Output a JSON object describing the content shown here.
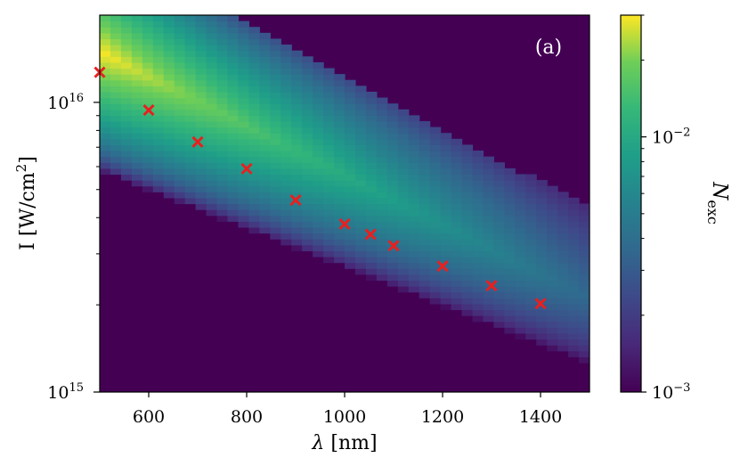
{
  "chart_data": {
    "type": "heatmap",
    "panel_label": "(a)",
    "xlabel_symbol": "λ",
    "xlabel_unit": "[nm]",
    "ylabel_main": "I [W/cm",
    "ylabel_sup": "2",
    "ylabel_close": "]",
    "xlim": [
      500,
      1500
    ],
    "ylim": [
      1000000000000000.0,
      2e+16
    ],
    "yscale": "log",
    "x_ticks": [
      600,
      800,
      1000,
      1200,
      1400
    ],
    "x_tick_labels": [
      "600",
      "800",
      "1000",
      "1200",
      "1400"
    ],
    "y_ticks": [
      {
        "value": 1000000000000000.0,
        "base": "10",
        "exp": "15"
      },
      {
        "value": 1e+16,
        "base": "10",
        "exp": "16"
      }
    ],
    "colorbar": {
      "label": "N",
      "label_sub": "exc",
      "scale": "log",
      "range": [
        0.001,
        0.03
      ],
      "ticks": [
        {
          "value": 0.001,
          "base": "10",
          "exp": "−3"
        },
        {
          "value": 0.01,
          "base": "10",
          "exp": "−2"
        }
      ],
      "colormap": "viridis"
    },
    "heatmap_grid": {
      "x_cells": 46,
      "y_cells": 64
    },
    "band_model": {
      "lower_edge_at_500nm": 5800000000000000.0,
      "lower_edge_at_1500nm": 1250000000000000.0,
      "peak_at_500nm": 1.5e+16,
      "peak_at_1500nm": 2100000000000000.0,
      "upper_edge_at_500nm": 3.5e+16,
      "upper_edge_at_1500nm": 4300000000000000.0,
      "max_value": 0.03,
      "min_value": 0.001
    },
    "markers": {
      "symbol": "x",
      "color": "#e8201f",
      "points": [
        {
          "x": 500,
          "y": 1.27e+16
        },
        {
          "x": 600,
          "y": 9400000000000000.0
        },
        {
          "x": 700,
          "y": 7300000000000000.0
        },
        {
          "x": 800,
          "y": 5900000000000000.0
        },
        {
          "x": 900,
          "y": 4600000000000000.0
        },
        {
          "x": 1000,
          "y": 3800000000000000.0
        },
        {
          "x": 1053,
          "y": 3500000000000000.0
        },
        {
          "x": 1100,
          "y": 3200000000000000.0
        },
        {
          "x": 1200,
          "y": 2720000000000000.0
        },
        {
          "x": 1300,
          "y": 2330000000000000.0
        },
        {
          "x": 1400,
          "y": 2020000000000000.0
        }
      ]
    }
  }
}
